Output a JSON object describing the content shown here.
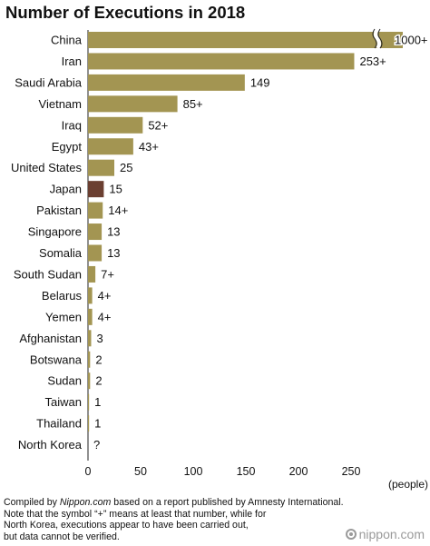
{
  "chart_data": {
    "type": "bar",
    "orientation": "horizontal",
    "title": "Number of Executions in 2018",
    "xlabel": "(people)",
    "ylabel": "",
    "xlim": [
      0,
      300
    ],
    "x_ticks": [
      0,
      50,
      100,
      150,
      200,
      250
    ],
    "axis_break": "between 250 and 300, China bar truncated",
    "categories": [
      "China",
      "Iran",
      "Saudi Arabia",
      "Vietnam",
      "Iraq",
      "Egypt",
      "United States",
      "Japan",
      "Pakistan",
      "Singapore",
      "Somalia",
      "South Sudan",
      "Belarus",
      "Yemen",
      "Afghanistan",
      "Botswana",
      "Sudan",
      "Taiwan",
      "Thailand",
      "North Korea"
    ],
    "values": [
      1000,
      253,
      149,
      85,
      52,
      43,
      25,
      15,
      14,
      13,
      13,
      7,
      4,
      4,
      3,
      2,
      2,
      1,
      1,
      null
    ],
    "value_labels": [
      "1000+",
      "253+",
      "149",
      "85+",
      "52+",
      "43+",
      "25",
      "15",
      "14+",
      "13",
      "13",
      "7+",
      "4+",
      "4+",
      "3",
      "2",
      "2",
      "1",
      "1",
      "?"
    ],
    "colors": {
      "default": "#a39552",
      "highlight": "#6b3f31"
    },
    "highlight_category": "Japan"
  },
  "notes": {
    "line1_prefix": "Compiled by ",
    "line1_source": "Nippon.com",
    "line1_suffix": " based on a report published by Amnesty International.",
    "line2": "Note that the symbol “+” means at least that number, while for",
    "line3": "North Korea, executions appear to have been carried out,",
    "line4": "but data cannot be verified."
  },
  "brand": {
    "text": "nippon.com",
    "icon": "nippon-logo-icon"
  }
}
